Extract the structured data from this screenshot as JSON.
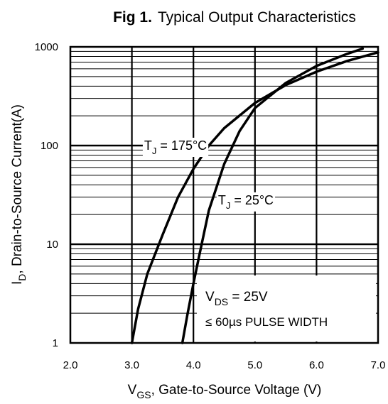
{
  "chart_data": {
    "type": "line",
    "title_prefix": "Fig 1.",
    "title": "Typical Output Characteristics",
    "xlabel": {
      "main": "V",
      "sub": "GS",
      "rest": ", Gate-to-Source Voltage (V)"
    },
    "ylabel": {
      "main": "I",
      "sub": "D",
      "rest": ", Drain-to-Source Current(A)"
    },
    "xlim": [
      2.0,
      7.0
    ],
    "ylim": [
      1,
      1000
    ],
    "yscale": "log",
    "grid": true,
    "x_ticks": [
      {
        "value": 2.0,
        "label": "2.0"
      },
      {
        "value": 3.0,
        "label": "3.0"
      },
      {
        "value": 4.0,
        "label": "4.0"
      },
      {
        "value": 5.0,
        "label": "5.0"
      },
      {
        "value": 6.0,
        "label": "6.0"
      },
      {
        "value": 7.0,
        "label": "7.0"
      }
    ],
    "y_ticks": [
      {
        "value": 1,
        "label": "1"
      },
      {
        "value": 10,
        "label": "10"
      },
      {
        "value": 100,
        "label": "100"
      },
      {
        "value": 1000,
        "label": "1000"
      }
    ],
    "series": [
      {
        "label_main": "T",
        "label_sub": "J",
        "label_rest": " = 175°C",
        "label_anchor": {
          "x": 3.2,
          "y": 100
        },
        "x": [
          3.0,
          3.1,
          3.25,
          3.5,
          3.75,
          4.0,
          4.25,
          4.5,
          5.0,
          5.5,
          6.0,
          6.5,
          7.0
        ],
        "y": [
          1.0,
          2.2,
          5.0,
          12.5,
          30,
          58,
          100,
          150,
          270,
          410,
          560,
          720,
          880
        ]
      },
      {
        "label_main": "T",
        "label_sub": "J",
        "label_rest": " = 25°C",
        "label_anchor": {
          "x": 4.4,
          "y": 28
        },
        "x": [
          3.82,
          3.9,
          4.0,
          4.1,
          4.25,
          4.5,
          4.75,
          5.0,
          5.5,
          6.0,
          6.5,
          6.75
        ],
        "y": [
          1.0,
          1.9,
          4.0,
          8.0,
          22,
          65,
          140,
          240,
          430,
          640,
          850,
          960
        ]
      }
    ],
    "annotation": {
      "line1_main": "V",
      "line1_sub": "DS",
      "line1_rest": " = 25V",
      "line2": "≤ 60µs PULSE WIDTH"
    }
  }
}
